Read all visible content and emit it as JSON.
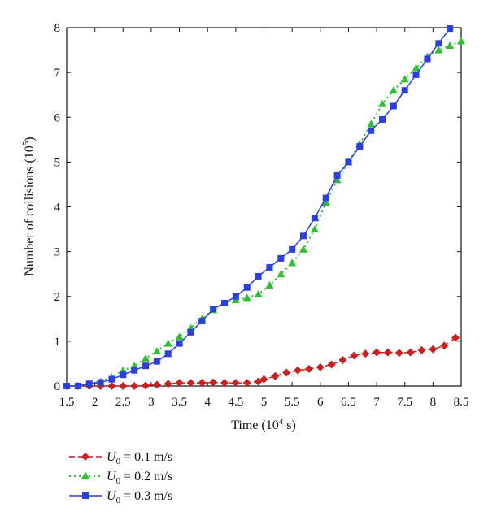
{
  "chart_data": {
    "type": "line",
    "xlabel": "Time (10",
    "xlabel_sup": "4",
    "xlabel_tail": " s)",
    "ylabel": "Number of collisions (10",
    "ylabel_sup": "5",
    "ylabel_tail": ")",
    "xlim": [
      1.5,
      8.5
    ],
    "ylim": [
      0,
      8
    ],
    "x_ticks": [
      "1.5",
      "2",
      "2.5",
      "3",
      "3.5",
      "4",
      "4.5",
      "5",
      "5.5",
      "6",
      "6.5",
      "7",
      "7.5",
      "8",
      "8.5"
    ],
    "y_ticks": [
      "0",
      "1",
      "2",
      "3",
      "4",
      "5",
      "6",
      "7",
      "8"
    ],
    "grid": false,
    "legend_position": "below",
    "series": [
      {
        "name": "U0 = 0.1 m/s",
        "legend_symbol": "U",
        "legend_sub": "0",
        "legend_rest": " = 0.1 m/s",
        "color": "#cc1f1f",
        "line_style": "dashed",
        "marker": "diamond",
        "x": [
          1.5,
          1.7,
          1.9,
          2.1,
          2.3,
          2.5,
          2.7,
          2.9,
          3.1,
          3.3,
          3.5,
          3.7,
          3.9,
          4.1,
          4.3,
          4.5,
          4.7,
          4.9,
          5.0,
          5.2,
          5.4,
          5.6,
          5.8,
          6.0,
          6.2,
          6.4,
          6.6,
          6.8,
          7.0,
          7.2,
          7.4,
          7.6,
          7.8,
          8.0,
          8.2,
          8.4
        ],
        "y": [
          0,
          0,
          0,
          0,
          0,
          0,
          0,
          0.01,
          0.03,
          0.05,
          0.07,
          0.07,
          0.07,
          0.08,
          0.07,
          0.07,
          0.07,
          0.1,
          0.15,
          0.22,
          0.3,
          0.35,
          0.38,
          0.42,
          0.48,
          0.58,
          0.68,
          0.72,
          0.75,
          0.75,
          0.74,
          0.75,
          0.8,
          0.82,
          0.9,
          1.08
        ]
      },
      {
        "name": "U0 = 0.2 m/s",
        "legend_symbol": "U",
        "legend_sub": "0",
        "legend_rest": " = 0.2 m/s",
        "color": "#2ec12e",
        "line_style": "dotted",
        "marker": "triangle",
        "x": [
          1.5,
          1.7,
          1.9,
          2.1,
          2.3,
          2.5,
          2.7,
          2.9,
          3.1,
          3.3,
          3.5,
          3.7,
          3.9,
          4.1,
          4.3,
          4.5,
          4.7,
          4.9,
          5.1,
          5.3,
          5.5,
          5.7,
          5.9,
          6.1,
          6.3,
          6.5,
          6.7,
          6.9,
          7.1,
          7.3,
          7.5,
          7.7,
          7.9,
          8.1,
          8.3,
          8.5
        ],
        "y": [
          0,
          0,
          0.05,
          0.1,
          0.2,
          0.35,
          0.45,
          0.62,
          0.78,
          0.95,
          1.1,
          1.3,
          1.5,
          1.7,
          1.85,
          1.92,
          1.97,
          2.05,
          2.25,
          2.5,
          2.75,
          3.05,
          3.5,
          4.1,
          4.6,
          5.0,
          5.4,
          5.85,
          6.3,
          6.6,
          6.85,
          7.1,
          7.35,
          7.5,
          7.6,
          7.7
        ]
      },
      {
        "name": "U0 = 0.3 m/s",
        "legend_symbol": "U",
        "legend_sub": "0",
        "legend_rest": " = 0.3 m/s",
        "color": "#2a3fe0",
        "line_style": "solid",
        "marker": "square",
        "x": [
          1.5,
          1.7,
          1.9,
          2.1,
          2.3,
          2.5,
          2.7,
          2.9,
          3.1,
          3.3,
          3.5,
          3.7,
          3.9,
          4.1,
          4.3,
          4.5,
          4.7,
          4.9,
          5.1,
          5.3,
          5.5,
          5.7,
          5.9,
          6.1,
          6.3,
          6.5,
          6.7,
          6.9,
          7.1,
          7.3,
          7.5,
          7.7,
          7.9,
          8.1,
          8.3
        ],
        "y": [
          0,
          0,
          0.05,
          0.08,
          0.15,
          0.25,
          0.35,
          0.45,
          0.55,
          0.72,
          0.95,
          1.2,
          1.45,
          1.72,
          1.85,
          2.0,
          2.2,
          2.45,
          2.65,
          2.85,
          3.05,
          3.35,
          3.75,
          4.2,
          4.7,
          5.0,
          5.35,
          5.7,
          5.95,
          6.25,
          6.6,
          6.95,
          7.3,
          7.65,
          7.98
        ]
      }
    ]
  }
}
